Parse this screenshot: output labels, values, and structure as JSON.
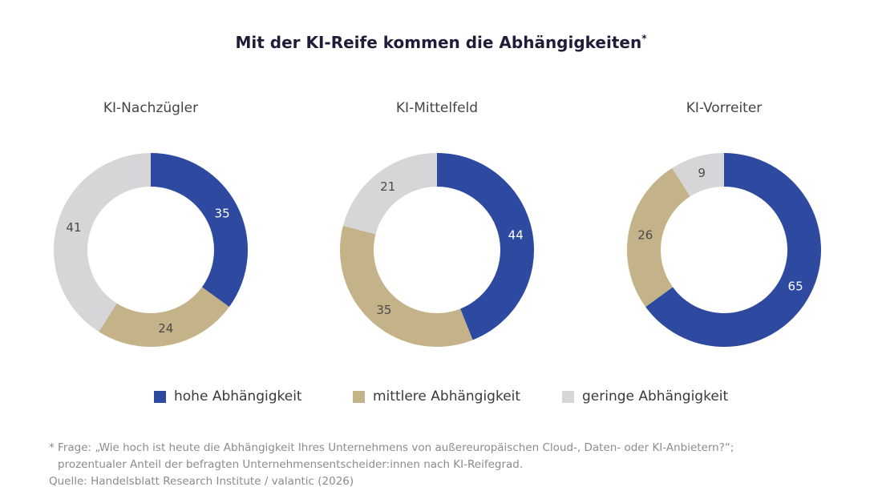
{
  "title": "Mit der KI-Reife kommen die Abhängigkeiten",
  "title_mark": "*",
  "legend": {
    "high": "hohe Abhängigkeit",
    "medium": "mittlere Abhängigkeit",
    "low": "geringe Abhängigkeit"
  },
  "footnote": {
    "line1": "* Frage: „Wie hoch ist heute die Abhängigkeit Ihres Unternehmens von außereuropäischen Cloud-, Daten- oder KI-Anbietern?“;",
    "line2": "prozentualer Anteil der befragten Unternehmensentscheider:innen nach KI-Reifegrad.",
    "source": "Quelle: Handelsblatt Research Institute / valantic (2026)"
  },
  "colors": {
    "high": "#2e4aa0",
    "medium": "#c4b388",
    "low": "#d6d6d9"
  },
  "chart_data": [
    {
      "type": "pie",
      "title": "KI-Nachzügler",
      "categories": [
        "hohe Abhängigkeit",
        "mittlere Abhängigkeit",
        "geringe Abhängigkeit"
      ],
      "values": [
        35,
        24,
        41
      ],
      "labels": [
        "35",
        "24",
        "41"
      ]
    },
    {
      "type": "pie",
      "title": "KI-Mittelfeld",
      "categories": [
        "hohe Abhängigkeit",
        "mittlere Abhängigkeit",
        "geringe Abhängigkeit"
      ],
      "values": [
        44,
        35,
        21
      ],
      "labels": [
        "44",
        "35",
        "21"
      ]
    },
    {
      "type": "pie",
      "title": "KI-Vorreiter",
      "categories": [
        "hohe Abhängigkeit",
        "mittlere Abhängigkeit",
        "geringe Abhängigkeit"
      ],
      "values": [
        65,
        26,
        9
      ],
      "labels": [
        "65",
        "26",
        "9"
      ]
    }
  ]
}
